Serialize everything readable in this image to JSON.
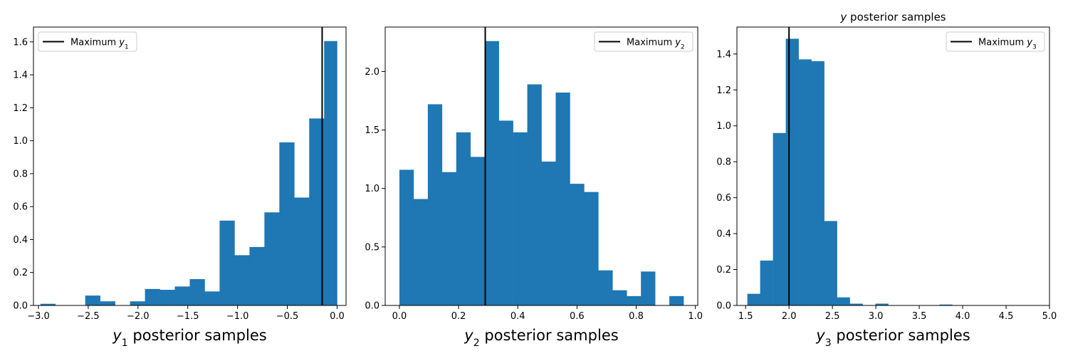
{
  "figure_title": "y posterior samples",
  "colors": {
    "bar": "#1f77b4",
    "line": "#000000",
    "axis": "#000000",
    "legend_border": "#cccccc"
  },
  "chart_data": [
    {
      "type": "bar",
      "xlabel": "y₁ posterior samples",
      "xlim": [
        -3.05,
        0.09
      ],
      "ylim": [
        0,
        1.69
      ],
      "xticks": [
        -3.0,
        -2.5,
        -2.0,
        -1.5,
        -1.0,
        -0.5,
        0.0
      ],
      "xtick_labels": [
        "−3.0",
        "−2.5",
        "−2.0",
        "−1.5",
        "−1.0",
        "−0.5",
        "0.0"
      ],
      "yticks": [
        0.0,
        0.2,
        0.4,
        0.6,
        0.8,
        1.0,
        1.2,
        1.4,
        1.6
      ],
      "ytick_labels": [
        "0.0",
        "0.2",
        "0.4",
        "0.6",
        "0.8",
        "1.0",
        "1.2",
        "1.4",
        "1.6"
      ],
      "bin_edges": [
        -2.98,
        -2.83,
        -2.68,
        -2.53,
        -2.38,
        -2.23,
        -2.08,
        -1.93,
        -1.78,
        -1.63,
        -1.48,
        -1.33,
        -1.18,
        -1.03,
        -0.88,
        -0.73,
        -0.58,
        -0.43,
        -0.28,
        -0.13,
        0.0
      ],
      "values": [
        0.01,
        0.0,
        0.0,
        0.06,
        0.025,
        0.0,
        0.025,
        0.1,
        0.095,
        0.115,
        0.16,
        0.085,
        0.515,
        0.305,
        0.355,
        0.565,
        0.99,
        0.655,
        1.135,
        1.605
      ],
      "vline": {
        "x": -0.15,
        "legend": "Maximum y₁"
      },
      "legend_position": "upper left"
    },
    {
      "type": "bar",
      "xlabel": "y₂ posterior samples",
      "xlim": [
        -0.048,
        1.008
      ],
      "ylim": [
        0,
        2.38
      ],
      "xticks": [
        0.0,
        0.2,
        0.4,
        0.6,
        0.8,
        1.0
      ],
      "xtick_labels": [
        "0.0",
        "0.2",
        "0.4",
        "0.6",
        "0.8",
        "1.0"
      ],
      "yticks": [
        0.0,
        0.5,
        1.0,
        1.5,
        2.0
      ],
      "ytick_labels": [
        "0.0",
        "0.5",
        "1.0",
        "1.5",
        "2.0"
      ],
      "bin_edges": [
        0.0,
        0.048,
        0.096,
        0.144,
        0.192,
        0.24,
        0.288,
        0.336,
        0.384,
        0.432,
        0.48,
        0.528,
        0.576,
        0.624,
        0.672,
        0.72,
        0.768,
        0.816,
        0.864,
        0.912,
        0.96
      ],
      "values": [
        1.16,
        0.91,
        1.72,
        1.14,
        1.48,
        1.27,
        2.26,
        1.58,
        1.48,
        1.89,
        1.23,
        1.82,
        1.04,
        0.97,
        0.3,
        0.13,
        0.08,
        0.29,
        0.0,
        0.08
      ],
      "vline": {
        "x": 0.29,
        "legend": "Maximum y₂"
      },
      "legend_position": "upper right"
    },
    {
      "type": "bar",
      "title": "y posterior samples",
      "xlabel": "y₃ posterior samples",
      "xlim": [
        1.4,
        5.0
      ],
      "ylim": [
        0,
        1.55
      ],
      "xticks": [
        1.5,
        2.0,
        2.5,
        3.0,
        3.5,
        4.0,
        4.5,
        5.0
      ],
      "xtick_labels": [
        "1.5",
        "2.0",
        "2.5",
        "3.0",
        "3.5",
        "4.0",
        "4.5",
        "5.0"
      ],
      "yticks": [
        0.0,
        0.2,
        0.4,
        0.6,
        0.8,
        1.0,
        1.2,
        1.4
      ],
      "ytick_labels": [
        "0.0",
        "0.2",
        "0.4",
        "0.6",
        "0.8",
        "1.0",
        "1.2",
        "1.4"
      ],
      "bin_edges": [
        1.52,
        1.6675,
        1.815,
        1.9625,
        2.11,
        2.2575,
        2.405,
        2.5525,
        2.7,
        2.8475,
        2.995,
        3.1425,
        3.29,
        3.4375,
        3.585,
        3.7325,
        3.88,
        4.0275,
        4.175,
        4.3225,
        4.47
      ],
      "values": [
        0.065,
        0.25,
        0.96,
        1.485,
        1.37,
        1.36,
        0.47,
        0.045,
        0.01,
        0.0,
        0.01,
        0.0,
        0.0,
        0.0,
        0.0,
        0.005,
        0.0,
        0.0,
        0.0,
        0.0
      ],
      "vline": {
        "x": 2.0,
        "legend": "Maximum y₃"
      },
      "legend_position": "upper right"
    }
  ]
}
